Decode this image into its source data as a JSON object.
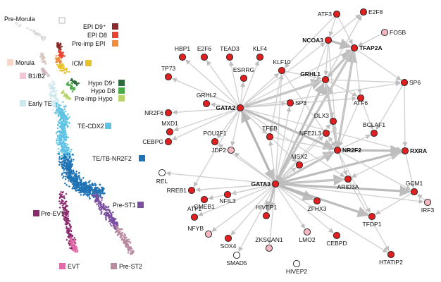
{
  "umap": {
    "clusters": [
      {
        "key": "pre_morula",
        "label": "Pre-Morula",
        "color": "#ffffff"
      },
      {
        "key": "epi_d9",
        "label": "EPI D9⁺",
        "color": "#8b2a2a"
      },
      {
        "key": "epi_d8",
        "label": "EPI D8",
        "color": "#e8442f"
      },
      {
        "key": "preimp_epi",
        "label": "Pre-imp EPI",
        "color": "#f08b3a"
      },
      {
        "key": "morula",
        "label": "Morula",
        "color": "#f6d7c9"
      },
      {
        "key": "icm",
        "label": "ICM",
        "color": "#e6c229"
      },
      {
        "key": "b1b2",
        "label": "B1/B2",
        "color": "#f3c6d8"
      },
      {
        "key": "hypo_d9",
        "label": "Hypo D9⁺",
        "color": "#2d6b3a"
      },
      {
        "key": "hypo_d8",
        "label": "Hypo D8",
        "color": "#4aaa4a"
      },
      {
        "key": "preimp_hypo",
        "label": "Pre-imp Hypo",
        "color": "#b7d56a"
      },
      {
        "key": "early_te",
        "label": "Early TE",
        "color": "#cfe8ef"
      },
      {
        "key": "te_cdx2",
        "label": "TE-CDX2",
        "color": "#5fc3e3"
      },
      {
        "key": "te_tb_nr2f2",
        "label": "TE/TB-NR2F2",
        "color": "#1f73b4"
      },
      {
        "key": "pre_st1",
        "label": "Pre-ST1",
        "color": "#7a4fa0"
      },
      {
        "key": "pre_evt",
        "label": "Pre-EVT",
        "color": "#8a2a6e"
      },
      {
        "key": "evt",
        "label": "EVT",
        "color": "#e06aa8"
      },
      {
        "key": "pre_st2",
        "label": "Pre-ST2",
        "color": "#b98aa0"
      }
    ]
  },
  "network": {
    "node_types": {
      "red": "#e02020",
      "pink": "#f4b6bf",
      "white": "#ffffff"
    },
    "nodes": [
      {
        "id": "ATF3",
        "label": "ATF3",
        "type": "red",
        "bold": false
      },
      {
        "id": "E2F8",
        "label": "E2F8",
        "type": "red",
        "bold": false
      },
      {
        "id": "FOSB",
        "label": "FOSB",
        "type": "pink",
        "bold": false
      },
      {
        "id": "NCOA3",
        "label": "NCOA3",
        "type": "red",
        "bold": true
      },
      {
        "id": "TFAP2A",
        "label": "TFAP2A",
        "type": "red",
        "bold": true
      },
      {
        "id": "HBP1",
        "label": "HBP1",
        "type": "red",
        "bold": false
      },
      {
        "id": "E2F6",
        "label": "E2F6",
        "type": "red",
        "bold": false
      },
      {
        "id": "TEAD3",
        "label": "TEAD3",
        "type": "red",
        "bold": false
      },
      {
        "id": "KLF4",
        "label": "KLF4",
        "type": "red",
        "bold": false
      },
      {
        "id": "TP73",
        "label": "TP73",
        "type": "red",
        "bold": false
      },
      {
        "id": "ESRRG",
        "label": "ESRRG",
        "type": "red",
        "bold": false
      },
      {
        "id": "KLF10",
        "label": "KLF10",
        "type": "red",
        "bold": false
      },
      {
        "id": "GRHL1",
        "label": "GRHL1",
        "type": "red",
        "bold": true
      },
      {
        "id": "SP6",
        "label": "SP6",
        "type": "red",
        "bold": false
      },
      {
        "id": "ATF6",
        "label": "ATF6",
        "type": "red",
        "bold": false
      },
      {
        "id": "GRHL2",
        "label": "GRHL2",
        "type": "red",
        "bold": false
      },
      {
        "id": "GATA2",
        "label": "GATA2",
        "type": "red",
        "bold": true
      },
      {
        "id": "SP3",
        "label": "SP3",
        "type": "red",
        "bold": false
      },
      {
        "id": "NR2F6",
        "label": "NR2F6",
        "type": "red",
        "bold": false
      },
      {
        "id": "DLX3",
        "label": "DLX3",
        "type": "red",
        "bold": false
      },
      {
        "id": "MXD1",
        "label": "MXD1",
        "type": "red",
        "bold": false
      },
      {
        "id": "NFE2L3",
        "label": "NFE2L3",
        "type": "red",
        "bold": false
      },
      {
        "id": "BCLAF1",
        "label": "BCLAF1",
        "type": "red",
        "bold": false
      },
      {
        "id": "POU2F1",
        "label": "POU2F1",
        "type": "red",
        "bold": false
      },
      {
        "id": "TFEB",
        "label": "TFEB",
        "type": "red",
        "bold": false
      },
      {
        "id": "CEBPG",
        "label": "CEBPG",
        "type": "red",
        "bold": false
      },
      {
        "id": "NR2F2",
        "label": "NR2F2",
        "type": "red",
        "bold": true
      },
      {
        "id": "RXRA",
        "label": "RXRA",
        "type": "red",
        "bold": true
      },
      {
        "id": "JDP2",
        "label": "JDP2",
        "type": "pink",
        "bold": false
      },
      {
        "id": "MSX2",
        "label": "MSX2",
        "type": "red",
        "bold": false
      },
      {
        "id": "REL",
        "label": "REL",
        "type": "white",
        "bold": false
      },
      {
        "id": "GATA3",
        "label": "GATA3",
        "type": "red",
        "bold": true
      },
      {
        "id": "ARID3A",
        "label": "ARID3A",
        "type": "red",
        "bold": false
      },
      {
        "id": "RREB1",
        "label": "RREB1",
        "type": "red",
        "bold": false
      },
      {
        "id": "NFIL3",
        "label": "NFIL3",
        "type": "red",
        "bold": false
      },
      {
        "id": "ZFHX3",
        "label": "ZFHX3",
        "type": "red",
        "bold": false
      },
      {
        "id": "GCM1",
        "label": "GCM1",
        "type": "red",
        "bold": false
      },
      {
        "id": "GMEB1",
        "label": "GMEB1",
        "type": "red",
        "bold": false
      },
      {
        "id": "IRF3",
        "label": "IRF3",
        "type": "pink",
        "bold": false
      },
      {
        "id": "ATF1",
        "label": "ATF1",
        "type": "red",
        "bold": false
      },
      {
        "id": "HIVEP1",
        "label": "HIVEP1",
        "type": "red",
        "bold": false
      },
      {
        "id": "TFDP1",
        "label": "TFDP1",
        "type": "red",
        "bold": false
      },
      {
        "id": "NFYB",
        "label": "NFYB",
        "type": "pink",
        "bold": false
      },
      {
        "id": "LMO2",
        "label": "LMO2",
        "type": "pink",
        "bold": false
      },
      {
        "id": "SOX4",
        "label": "SOX4",
        "type": "red",
        "bold": false
      },
      {
        "id": "ZKSCAN1",
        "label": "ZKSCAN1",
        "type": "pink",
        "bold": false
      },
      {
        "id": "CEBPD",
        "label": "CEBPD",
        "type": "red",
        "bold": false
      },
      {
        "id": "SMAD5",
        "label": "SMAD5",
        "type": "white",
        "bold": false
      },
      {
        "id": "HTATIP2",
        "label": "HTATIP2",
        "type": "red",
        "bold": false
      },
      {
        "id": "HIVEP2",
        "label": "HIVEP2",
        "type": "white",
        "bold": false
      }
    ],
    "edges": [
      [
        "GATA3",
        "GATA2"
      ],
      [
        "GATA2",
        "GATA3"
      ],
      [
        "GATA3",
        "NR2F2"
      ],
      [
        "GATA3",
        "TFAP2A"
      ],
      [
        "GATA3",
        "GRHL1"
      ],
      [
        "GATA3",
        "KLF10"
      ],
      [
        "GATA3",
        "TFEB"
      ],
      [
        "GATA3",
        "MSX2"
      ],
      [
        "GATA3",
        "RREB1"
      ],
      [
        "GATA3",
        "NFIL3"
      ],
      [
        "GATA3",
        "ZFHX3"
      ],
      [
        "GATA3",
        "GCM1"
      ],
      [
        "GATA3",
        "TFDP1"
      ],
      [
        "GATA3",
        "CEBPD"
      ],
      [
        "GATA3",
        "HIVEP1"
      ],
      [
        "GATA3",
        "LMO2"
      ],
      [
        "GATA3",
        "SOX4"
      ],
      [
        "GATA3",
        "ATF1"
      ],
      [
        "GATA3",
        "ARID3A"
      ],
      [
        "GATA3",
        "RXRA"
      ],
      [
        "GATA3",
        "REL"
      ],
      [
        "GATA3",
        "JDP2"
      ],
      [
        "GATA3",
        "HTATIP2"
      ],
      [
        "GATA3",
        "DLX3"
      ],
      [
        "GATA3",
        "NFE2L3"
      ],
      [
        "GATA3",
        "POU2F1"
      ],
      [
        "GATA3",
        "GMEB1"
      ],
      [
        "GATA3",
        "ZKSCAN1"
      ],
      [
        "GATA3",
        "SMAD5"
      ],
      [
        "GATA3",
        "SP3"
      ],
      [
        "GATA3",
        "NFYB"
      ],
      [
        "GATA3",
        "IRF3"
      ],
      [
        "GATA2",
        "HBP1"
      ],
      [
        "GATA2",
        "E2F6"
      ],
      [
        "GATA2",
        "TEAD3"
      ],
      [
        "GATA2",
        "KLF4"
      ],
      [
        "GATA2",
        "TP73"
      ],
      [
        "GATA2",
        "ESRRG"
      ],
      [
        "GATA2",
        "GRHL2"
      ],
      [
        "GATA2",
        "NR2F6"
      ],
      [
        "GATA2",
        "MXD1"
      ],
      [
        "GATA2",
        "CEBPG"
      ],
      [
        "GATA2",
        "POU2F1"
      ],
      [
        "GATA2",
        "KLF10"
      ],
      [
        "GATA2",
        "SP3"
      ],
      [
        "GATA2",
        "TFEB"
      ],
      [
        "GATA2",
        "JDP2"
      ],
      [
        "GATA2",
        "NR2F2"
      ],
      [
        "GATA2",
        "GRHL1"
      ],
      [
        "GATA2",
        "NCOA3"
      ],
      [
        "GATA2",
        "TFAP2A"
      ],
      [
        "GATA2",
        "RXRA"
      ],
      [
        "GATA2",
        "SP6"
      ],
      [
        "GATA2",
        "ARID3A"
      ],
      [
        "GATA2",
        "RREB1"
      ],
      [
        "GATA2",
        "MSX2"
      ],
      [
        "GATA2",
        "ATF6"
      ],
      [
        "NR2F2",
        "TFAP2A"
      ],
      [
        "NR2F2",
        "GRHL1"
      ],
      [
        "NR2F2",
        "RXRA"
      ],
      [
        "NR2F2",
        "ARID3A"
      ],
      [
        "NR2F2",
        "DLX3"
      ],
      [
        "NR2F2",
        "GATA3"
      ],
      [
        "NR2F2",
        "TFDP1"
      ],
      [
        "NR2F2",
        "GCM1"
      ],
      [
        "NR2F2",
        "NFE2L3"
      ],
      [
        "NR2F2",
        "BCLAF1"
      ],
      [
        "GRHL1",
        "TFAP2A"
      ],
      [
        "GRHL1",
        "NR2F2"
      ],
      [
        "GRHL1",
        "ATF6"
      ],
      [
        "GRHL1",
        "SP6"
      ],
      [
        "GRHL1",
        "E2F8"
      ],
      [
        "GRHL1",
        "DLX3"
      ],
      [
        "GRHL1",
        "GATA2"
      ],
      [
        "NCOA3",
        "TFAP2A"
      ],
      [
        "NCOA3",
        "GRHL1"
      ],
      [
        "NCOA3",
        "E2F8"
      ],
      [
        "NCOA3",
        "GATA3"
      ],
      [
        "NCOA3",
        "NR2F2"
      ],
      [
        "ATF3",
        "NCOA3"
      ],
      [
        "ATF3",
        "KLF10"
      ],
      [
        "ATF3",
        "TFAP2A"
      ],
      [
        "FOSB",
        "TFAP2A"
      ],
      [
        "TFAP2A",
        "GRHL1"
      ],
      [
        "TFAP2A",
        "SP6"
      ],
      [
        "TFAP2A",
        "ATF6"
      ],
      [
        "TFAP2A",
        "NR2F2"
      ],
      [
        "TFAP2A",
        "GATA3"
      ],
      [
        "SP6",
        "RXRA"
      ],
      [
        "SP6",
        "BCLAF1"
      ],
      [
        "KLF10",
        "GRHL1"
      ],
      [
        "KLF10",
        "NR2F2"
      ],
      [
        "KLF10",
        "TFEB"
      ],
      [
        "ATF6",
        "NR2F2"
      ],
      [
        "ATF6",
        "BCLAF1"
      ],
      [
        "DLX3",
        "NR2F2"
      ],
      [
        "NFE2L3",
        "NR2F2"
      ],
      [
        "MSX2",
        "NR2F2"
      ],
      [
        "TFEB",
        "NR2F2"
      ],
      [
        "MSX2",
        "GATA3"
      ],
      [
        "RXRA",
        "ARID3A"
      ],
      [
        "RXRA",
        "GCM1"
      ],
      [
        "IRF3",
        "GCM1"
      ],
      [
        "GCM1",
        "TFDP1"
      ],
      [
        "ARID3A",
        "HTATIP2"
      ],
      [
        "ARID3A",
        "GATA3"
      ]
    ],
    "thick_edges": [
      [
        "GATA3",
        "GATA2"
      ],
      [
        "GATA2",
        "GATA3"
      ],
      [
        "GATA3",
        "NR2F2"
      ],
      [
        "GATA3",
        "TFAP2A"
      ],
      [
        "NR2F2",
        "TFAP2A"
      ],
      [
        "GRHL1",
        "TFAP2A"
      ],
      [
        "NCOA3",
        "TFAP2A"
      ],
      [
        "GATA2",
        "GRHL1"
      ],
      [
        "GATA3",
        "GRHL1"
      ],
      [
        "NR2F2",
        "GRHL1"
      ],
      [
        "NR2F2",
        "RXRA"
      ],
      [
        "GATA3",
        "RXRA"
      ],
      [
        "GATA3",
        "GCM1"
      ],
      [
        "GATA3",
        "ZFHX3"
      ],
      [
        "GATA3",
        "HIVEP1"
      ],
      [
        "GATA3",
        "TFDP1"
      ],
      [
        "GATA3",
        "ARID3A"
      ],
      [
        "GATA2",
        "NR2F2"
      ]
    ]
  }
}
